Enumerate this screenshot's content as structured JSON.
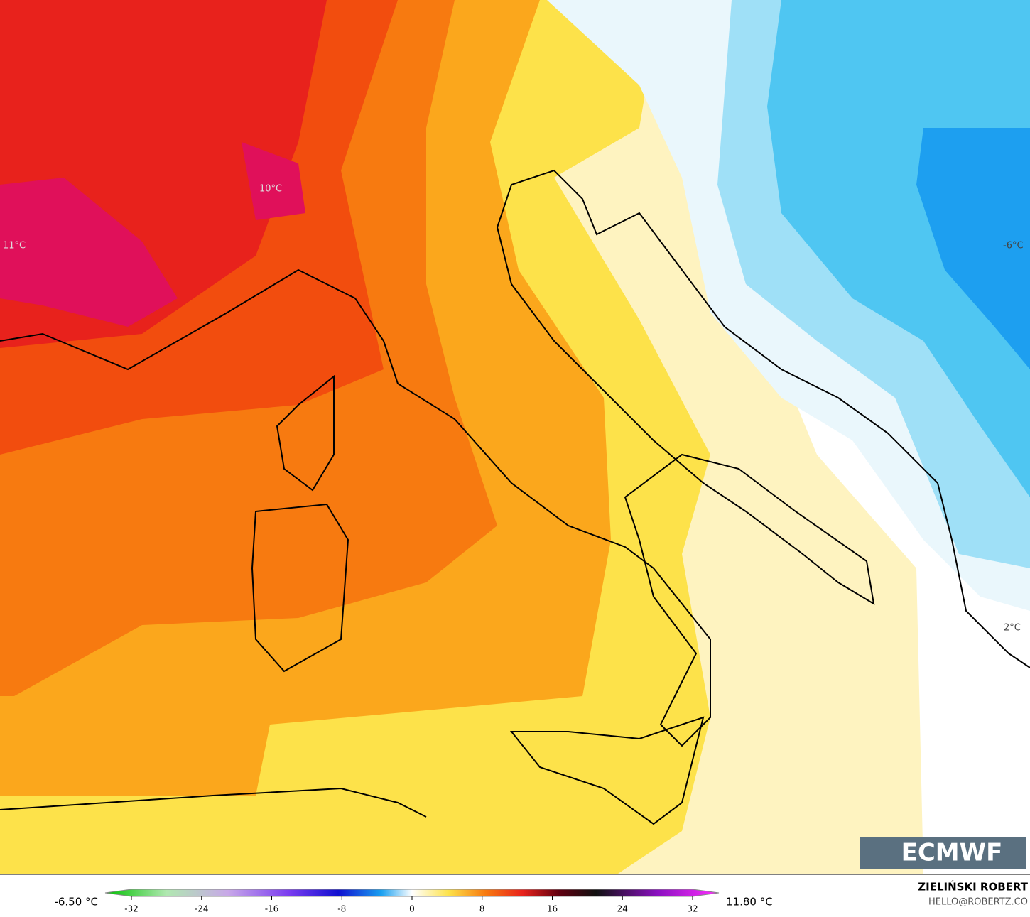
{
  "map": {
    "labels": [
      "11°C",
      "10°C",
      "-6°C",
      "2°C"
    ]
  },
  "logo": "ECMWF",
  "credit": {
    "name": "ZIELIŃSKI ROBERT",
    "contact": "HELLO@ROBERTZ.CO"
  },
  "legend": {
    "min_label": "-6.50 °C",
    "max_label": "11.80 °C",
    "ticks": [
      -32,
      -24,
      -16,
      -8,
      0,
      8,
      16,
      24,
      32
    ],
    "range": [
      -32,
      32
    ]
  }
}
